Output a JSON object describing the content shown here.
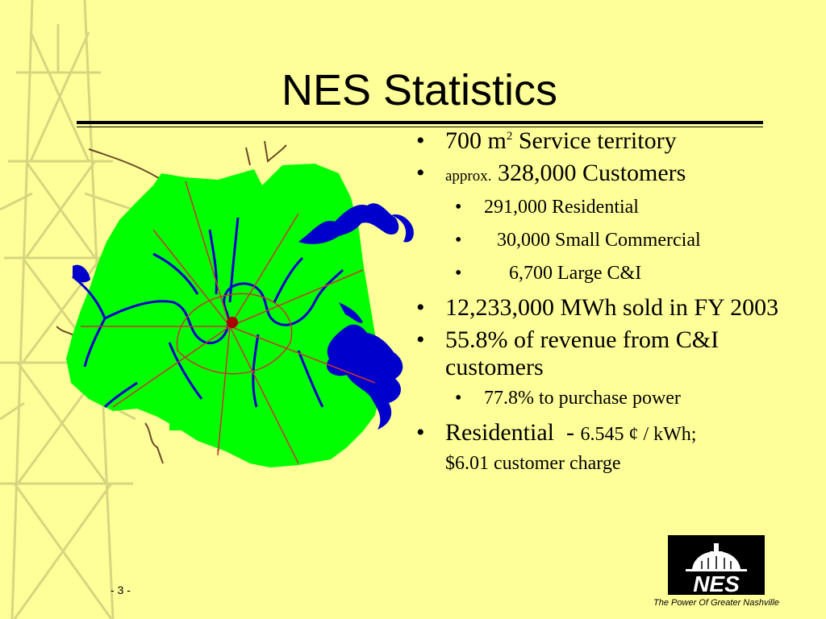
{
  "slide": {
    "title": "NES Statistics",
    "page_number": "- 3 -",
    "bullets": {
      "b1": {
        "pre": "700 m",
        "sup": "2",
        "post": " Service territory"
      },
      "b2": {
        "small": "approx.",
        "main": " 328,000 Customers"
      },
      "b2_1": "291,000 Residential",
      "b2_2": "30,000 Small Commercial",
      "b2_3": "6,700 Large C&I",
      "b3": "12,233,000 MWh sold in FY 2003",
      "b4": "55.8% of revenue from C&I customers",
      "b4_1": "77.8% to purchase power",
      "b5": {
        "main": "Residential  - ",
        "rate": "6.545 ¢ / kWh;",
        "charge": "$6.01 customer charge"
      }
    },
    "logo": {
      "text": "NES",
      "tagline": "The Power Of Greater Nashville"
    },
    "bullet_char": "•"
  },
  "colors": {
    "background": "#ffff99",
    "territory": "#00ff00",
    "water": "#0000cc",
    "roads": "#cc3333",
    "text": "#000000"
  }
}
